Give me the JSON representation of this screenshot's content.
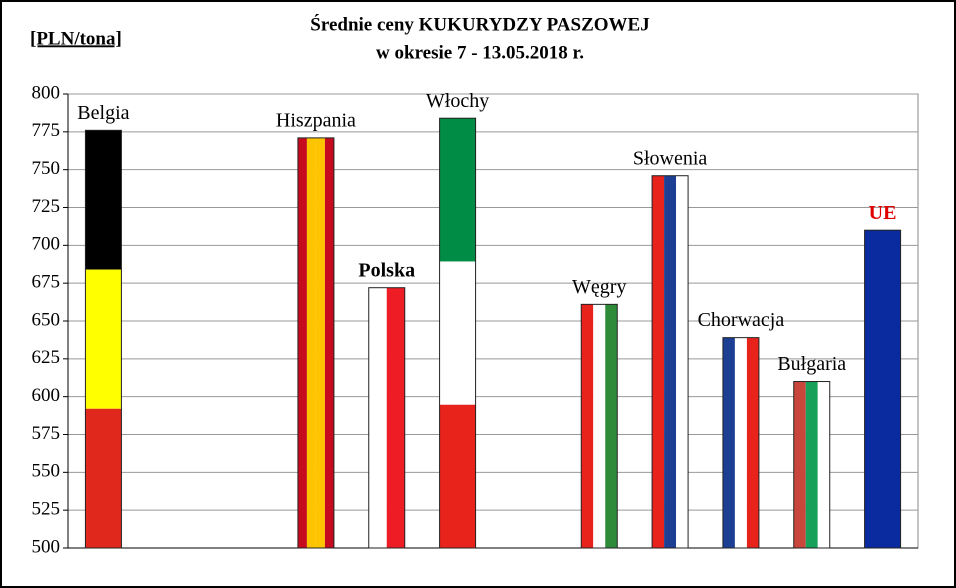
{
  "chart_data": {
    "type": "bar",
    "title": "Średnie ceny KUKURYDZY PASZOWEJ",
    "subtitle": "w okresie  7 - 13.05.2018 r.",
    "y_label": "[PLN/tona]",
    "categories": [
      "Belgia",
      null,
      null,
      "Hiszpania",
      "Polska",
      "Włochy",
      null,
      "Węgry",
      "Słowenia",
      "Chorwacja",
      "Bułgaria",
      "UE"
    ],
    "values": [
      776,
      null,
      null,
      771,
      672,
      784,
      null,
      661,
      746,
      639,
      610,
      710
    ],
    "flags": [
      {
        "dir": "h",
        "colors": [
          "#000000",
          "#ffff00",
          "#e0281c"
        ]
      },
      null,
      null,
      {
        "dir": "v",
        "colors": [
          "#c60b1e",
          "#ffc400",
          "#ffc400",
          "#c60b1e"
        ]
      },
      {
        "dir": "v",
        "colors": [
          "#ffffff",
          "#ee1c25"
        ],
        "bold": true
      },
      {
        "dir": "h",
        "colors": [
          "#008c45",
          "#ffffff",
          "#e8231c"
        ]
      },
      null,
      {
        "dir": "v",
        "colors": [
          "#e8231c",
          "#ffffff",
          "#2e8b3a"
        ]
      },
      {
        "dir": "v",
        "colors": [
          "#e8231c",
          "#1c3f94",
          "#ffffff"
        ]
      },
      {
        "dir": "v",
        "colors": [
          "#1c3f94",
          "#ffffff",
          "#e8231c"
        ]
      },
      {
        "dir": "v",
        "colors": [
          "#c8463c",
          "#17a05a",
          "#ffffff"
        ]
      },
      {
        "dir": "v",
        "colors": [
          "#0a2aa0"
        ],
        "bold": true,
        "label_color": "#e00000"
      }
    ],
    "ylim": [
      500,
      800
    ],
    "yticks": [
      500,
      525,
      550,
      575,
      600,
      625,
      650,
      675,
      700,
      725,
      750,
      775,
      800
    ],
    "grid": true
  }
}
